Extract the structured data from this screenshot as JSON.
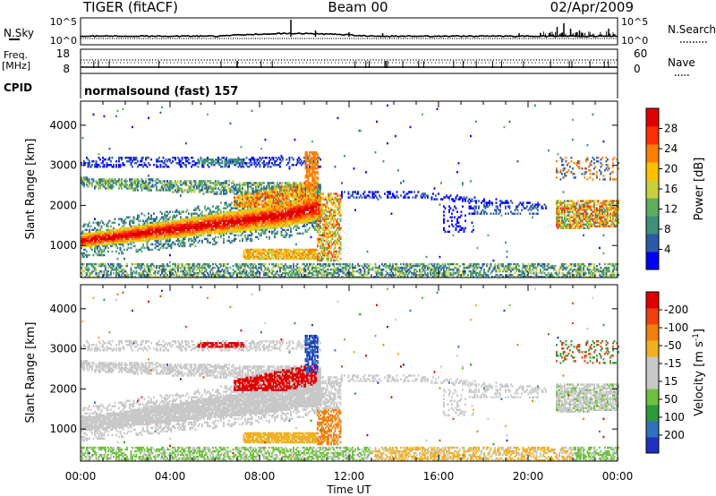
{
  "header": {
    "radar": "TIGER (fitACF)",
    "beam": "Beam 00",
    "date": "02/Apr/2009"
  },
  "top_panels": {
    "nsky_label": "N.Sky",
    "nsky_ticks": [
      "10^5",
      "10^0"
    ],
    "nsearch_label": "N.Search",
    "nsearch_ticks": [
      "10^5",
      "10^0"
    ],
    "freq_label_1": "Freq.",
    "freq_label_2": "[MHz]",
    "freq_ticks": [
      "18",
      "8"
    ],
    "nave_label": "Nave",
    "nave_ticks": [
      "60",
      "0"
    ],
    "cpid_label": "CPID",
    "cpid_value": "normalsound (fast) 157"
  },
  "colors": {
    "power": [
      "#0000ff",
      "#2d5aa8",
      "#3f8f7a",
      "#5fae5f",
      "#c8d040",
      "#ffc000",
      "#ff8000",
      "#ff3000",
      "#e00000"
    ],
    "velocity": [
      "#2030c0",
      "#3070c0",
      "#2e9a3a",
      "#70c040",
      "#c8c8c8",
      "#c8c8c8",
      "#f0b020",
      "#f08010",
      "#f04010",
      "#e00000"
    ]
  },
  "chart_data": [
    {
      "type": "heatmap",
      "panel": "power",
      "ylabel": "Slant Range [km]",
      "xlabel": "Time UT",
      "x_ticks": [
        "00:00",
        "04:00",
        "08:00",
        "12:00",
        "16:00",
        "20:00",
        "00:00"
      ],
      "y_ticks": [
        "1000",
        "2000",
        "3000",
        "4000"
      ],
      "ylim": [
        200,
        4600
      ],
      "xlim_hours": [
        0,
        24
      ],
      "colorbar": {
        "label": "Power [dB]",
        "ticks": [
          "4",
          "8",
          "12",
          "16",
          "20",
          "24",
          "28"
        ],
        "range": [
          0,
          30
        ]
      }
    },
    {
      "type": "heatmap",
      "panel": "velocity",
      "ylabel": "Slant Range [km]",
      "xlabel": "Time UT",
      "x_ticks": [
        "00:00",
        "04:00",
        "08:00",
        "12:00",
        "16:00",
        "20:00",
        "00:00"
      ],
      "y_ticks": [
        "1000",
        "2000",
        "3000",
        "4000"
      ],
      "ylim": [
        200,
        4600
      ],
      "xlim_hours": [
        0,
        24
      ],
      "colorbar": {
        "label_main": "Velocity [m s",
        "label_sup": "-1",
        "label_end": "]",
        "ticks": [
          "200",
          "100",
          "50",
          "15",
          "-15",
          "-50",
          "-100",
          "-200"
        ]
      }
    }
  ]
}
